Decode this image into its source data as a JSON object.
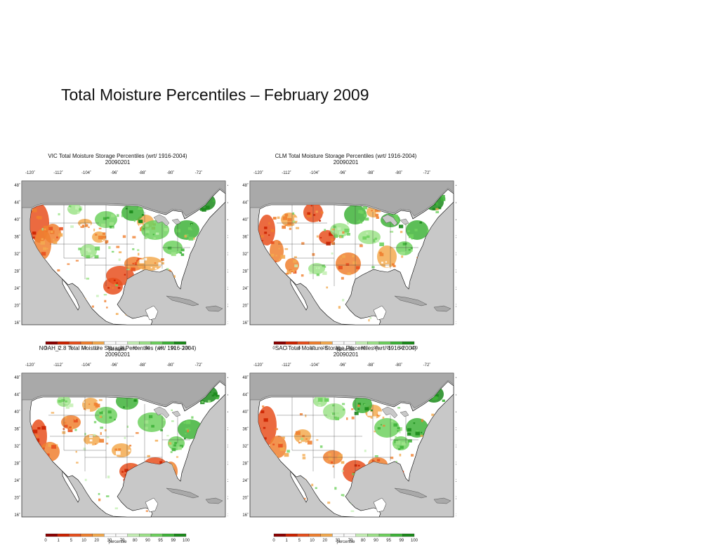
{
  "slide": {
    "title": "Total Moisture Percentiles – February 2009"
  },
  "colors": {
    "ocean": "#c8c8c8",
    "land_outside": "#a9a9a9",
    "palette": [
      "#8b0000",
      "#cc2200",
      "#e8501e",
      "#f08030",
      "#f3aa50",
      "#ffffff",
      "#ffffff",
      "#c6f0b6",
      "#9ee38a",
      "#6fd15f",
      "#3fb33a",
      "#1b8a1b"
    ]
  },
  "axes": {
    "lon_labels": [
      "-120˚",
      "-112˚",
      "-104˚",
      "-96˚",
      "-88˚",
      "-80˚",
      "-72˚"
    ],
    "lat_labels": [
      "48˚",
      "44˚",
      "40˚",
      "36˚",
      "32˚",
      "28˚",
      "24˚",
      "20˚",
      "16˚"
    ]
  },
  "colorbar": {
    "ticks": [
      "0",
      "1",
      "5",
      "10",
      "20",
      "30",
      "70",
      "80",
      "90",
      "95",
      "99",
      "100"
    ],
    "label": "percentile"
  },
  "panels": [
    {
      "title": "VIC Total Moisture Storage Percentiles (wrt/ 1916-2004)",
      "date": "20090201",
      "model": "VIC"
    },
    {
      "title": "CLM Total Moisture Storage Percentiles (wrt/ 1916-2004)",
      "date": "20090201",
      "model": "CLM"
    },
    {
      "title": "NOAH_2.8 Total Moisture Storage Percentiles (wrt/ 1916-2004)",
      "date": "20090201",
      "model": "NOAH"
    },
    {
      "title": "SAC Total Moisture Storage Percentiles (wrt/ 1916-2004)",
      "date": "20090201",
      "model": "SAC"
    }
  ]
}
